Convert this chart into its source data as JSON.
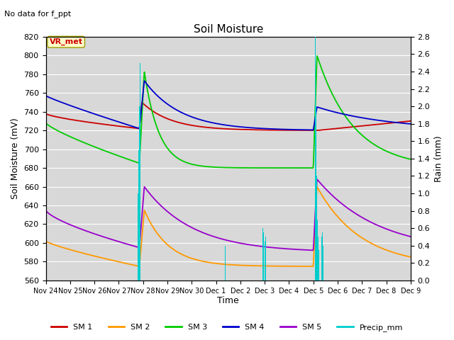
{
  "title": "Soil Moisture",
  "subtitle": "No data for f_ppt",
  "ylabel_left": "Soil Moisture (mV)",
  "ylabel_right": "Rain (mm)",
  "xlabel": "Time",
  "annotation": "VR_met",
  "ylim_left": [
    560,
    820
  ],
  "ylim_right": [
    0.0,
    2.8
  ],
  "yticks_left": [
    560,
    580,
    600,
    620,
    640,
    660,
    680,
    700,
    720,
    740,
    760,
    780,
    800,
    820
  ],
  "yticks_right": [
    0.0,
    0.2,
    0.4,
    0.6,
    0.8,
    1.0,
    1.2,
    1.4,
    1.6,
    1.8,
    2.0,
    2.2,
    2.4,
    2.6,
    2.8
  ],
  "xtick_labels": [
    "Nov 24",
    "Nov 25",
    "Nov 26",
    "Nov 27",
    "Nov 28",
    "Nov 29",
    "Nov 30",
    "Dec 1",
    "Dec 2",
    "Dec 3",
    "Dec 4",
    "Dec 5",
    "Dec 6",
    "Dec 7",
    "Dec 8",
    "Dec 9"
  ],
  "colors": {
    "SM1": "#cc0000",
    "SM2": "#ff9900",
    "SM3": "#00cc00",
    "SM4": "#0000cc",
    "SM5": "#9900cc",
    "Precip": "#00cccc",
    "background": "#d8d8d8",
    "annotation_bg": "#ffffcc",
    "annotation_border": "#999900",
    "annotation_text": "#cc0000"
  },
  "legend_entries": [
    "SM 1",
    "SM 2",
    "SM 3",
    "SM 4",
    "SM 5",
    "Precip_mm"
  ],
  "num_points": 1000
}
